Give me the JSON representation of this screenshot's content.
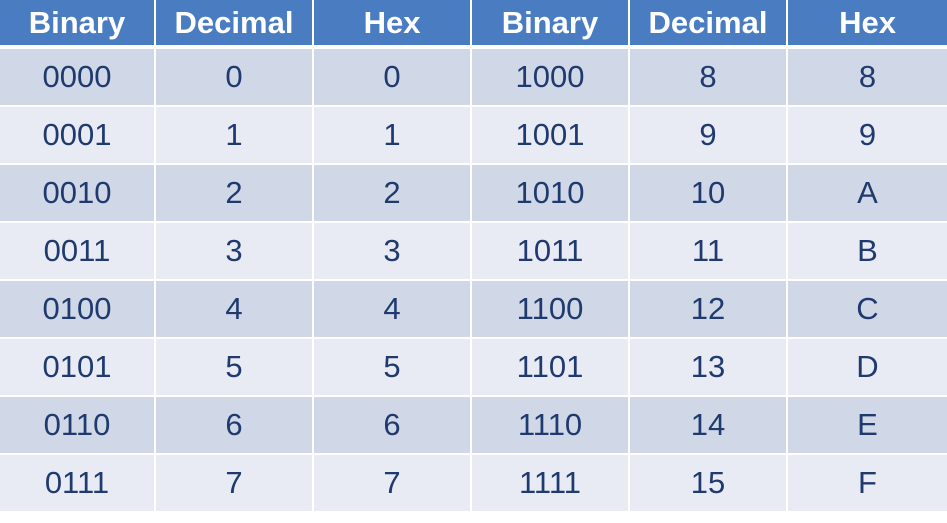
{
  "headers": [
    "Binary",
    "Decimal",
    "Hex",
    "Binary",
    "Decimal",
    "Hex"
  ],
  "rows": [
    [
      "0000",
      "0",
      "0",
      "1000",
      "8",
      "8"
    ],
    [
      "0001",
      "1",
      "1",
      "1001",
      "9",
      "9"
    ],
    [
      "0010",
      "2",
      "2",
      "1010",
      "10",
      "A"
    ],
    [
      "0011",
      "3",
      "3",
      "1011",
      "11",
      "B"
    ],
    [
      "0100",
      "4",
      "4",
      "1100",
      "12",
      "C"
    ],
    [
      "0101",
      "5",
      "5",
      "1101",
      "13",
      "D"
    ],
    [
      "0110",
      "6",
      "6",
      "1110",
      "14",
      "E"
    ],
    [
      "0111",
      "7",
      "7",
      "1111",
      "15",
      "F"
    ]
  ],
  "colors": {
    "header_bg": "#4a7cc2",
    "header_text": "#ffffff",
    "row_odd_bg": "#d0d7e7",
    "row_even_bg": "#e8ebf4",
    "cell_text": "#1f3a6e"
  }
}
